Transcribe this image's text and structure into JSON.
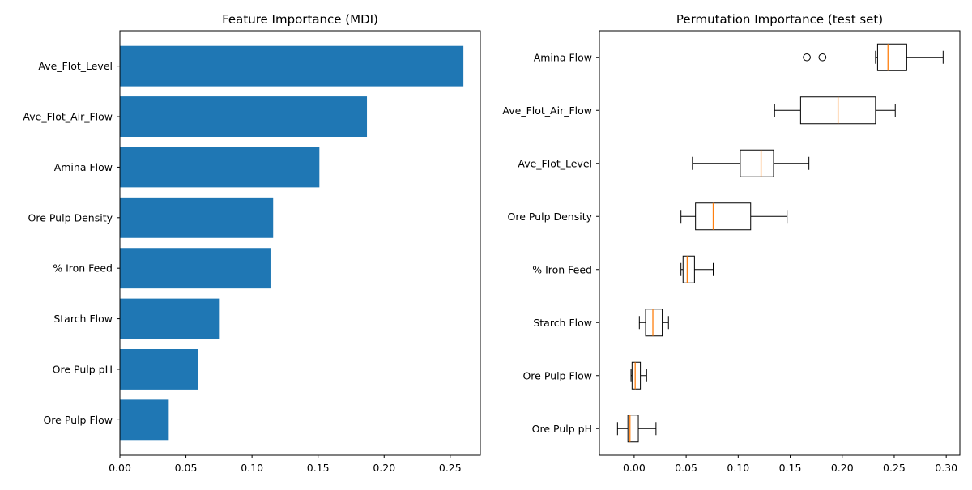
{
  "chart_data": [
    {
      "type": "bar",
      "orientation": "horizontal",
      "title": "Feature Importance (MDI)",
      "xlabel": "",
      "ylabel": "",
      "categories": [
        "Ave_Flot_Level",
        "Ave_Flot_Air_Flow",
        "Amina Flow",
        "Ore Pulp Density",
        "% Iron Feed",
        "Starch Flow",
        "Ore Pulp pH",
        "Ore Pulp Flow"
      ],
      "values": [
        0.26,
        0.187,
        0.151,
        0.116,
        0.114,
        0.075,
        0.059,
        0.037
      ],
      "xlim": [
        0.0,
        0.2728
      ],
      "xticks": [
        0.0,
        0.05,
        0.1,
        0.15,
        0.2,
        0.25
      ],
      "xtick_labels": [
        "0.00",
        "0.05",
        "0.10",
        "0.15",
        "0.20",
        "0.25"
      ],
      "grid": false,
      "bar_color": "#1f77b4"
    },
    {
      "type": "boxplot",
      "orientation": "horizontal",
      "title": "Permutation Importance (test set)",
      "xlabel": "",
      "ylabel": "",
      "xlim": [
        -0.0334,
        0.3131
      ],
      "xticks": [
        0.0,
        0.05,
        0.1,
        0.15,
        0.2,
        0.25,
        0.3
      ],
      "xtick_labels": [
        "0.00",
        "0.05",
        "0.10",
        "0.15",
        "0.20",
        "0.25",
        "0.30"
      ],
      "grid": false,
      "median_color": "#ff7f0e",
      "series": [
        {
          "label": "Amina Flow",
          "whisker_low": 0.232,
          "q1": 0.234,
          "median": 0.244,
          "q3": 0.262,
          "whisker_high": 0.297,
          "outliers": [
            0.166,
            0.181
          ]
        },
        {
          "label": "Ave_Flot_Air_Flow",
          "whisker_low": 0.135,
          "q1": 0.16,
          "median": 0.196,
          "q3": 0.232,
          "whisker_high": 0.251,
          "outliers": []
        },
        {
          "label": "Ave_Flot_Level",
          "whisker_low": 0.056,
          "q1": 0.102,
          "median": 0.122,
          "q3": 0.134,
          "whisker_high": 0.168,
          "outliers": []
        },
        {
          "label": "Ore Pulp Density",
          "whisker_low": 0.045,
          "q1": 0.059,
          "median": 0.076,
          "q3": 0.112,
          "whisker_high": 0.147,
          "outliers": []
        },
        {
          "label": "% Iron Feed",
          "whisker_low": 0.045,
          "q1": 0.047,
          "median": 0.051,
          "q3": 0.058,
          "whisker_high": 0.076,
          "outliers": []
        },
        {
          "label": "Starch Flow",
          "whisker_low": 0.005,
          "q1": 0.011,
          "median": 0.018,
          "q3": 0.027,
          "whisker_high": 0.033,
          "outliers": []
        },
        {
          "label": "Ore Pulp Flow",
          "whisker_low": -0.003,
          "q1": -0.002,
          "median": 0.001,
          "q3": 0.006,
          "whisker_high": 0.012,
          "outliers": []
        },
        {
          "label": "Ore Pulp pH",
          "whisker_low": -0.016,
          "q1": -0.006,
          "median": -0.004,
          "q3": 0.004,
          "whisker_high": 0.021,
          "outliers": []
        }
      ]
    }
  ]
}
